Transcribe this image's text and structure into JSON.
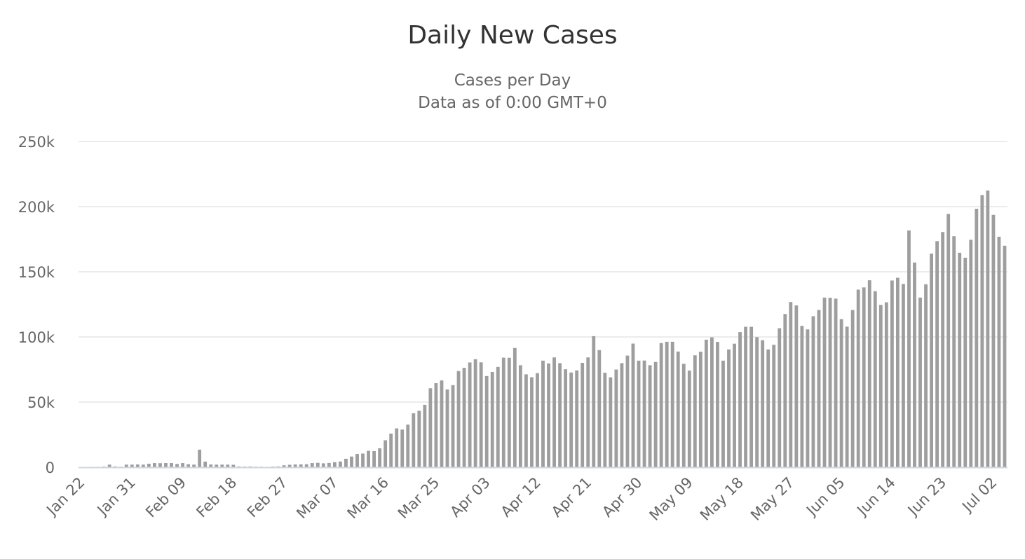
{
  "chart_data": {
    "type": "bar",
    "title": "Daily New Cases",
    "subtitle_lines": [
      "Cases per Day",
      "Data as of 0:00 GMT+0"
    ],
    "xlabel": "",
    "ylabel": "",
    "ylim": [
      0,
      250000
    ],
    "y_ticks": [
      {
        "value": 0,
        "label": "0"
      },
      {
        "value": 50000,
        "label": "50k"
      },
      {
        "value": 100000,
        "label": "100k"
      },
      {
        "value": 150000,
        "label": "150k"
      },
      {
        "value": 200000,
        "label": "200k"
      },
      {
        "value": 250000,
        "label": "250k"
      }
    ],
    "x_ticks": [
      {
        "index": 0,
        "label": "Jan 22"
      },
      {
        "index": 9,
        "label": "Jan 31"
      },
      {
        "index": 18,
        "label": "Feb 09"
      },
      {
        "index": 27,
        "label": "Feb 18"
      },
      {
        "index": 36,
        "label": "Feb 27"
      },
      {
        "index": 45,
        "label": "Mar 07"
      },
      {
        "index": 54,
        "label": "Mar 16"
      },
      {
        "index": 63,
        "label": "Mar 25"
      },
      {
        "index": 72,
        "label": "Apr 03"
      },
      {
        "index": 81,
        "label": "Apr 12"
      },
      {
        "index": 90,
        "label": "Apr 21"
      },
      {
        "index": 99,
        "label": "Apr 30"
      },
      {
        "index": 108,
        "label": "May 09"
      },
      {
        "index": 117,
        "label": "May 18"
      },
      {
        "index": 126,
        "label": "May 27"
      },
      {
        "index": 135,
        "label": "Jun 05"
      },
      {
        "index": 144,
        "label": "Jun 14"
      },
      {
        "index": 153,
        "label": "Jun 23"
      },
      {
        "index": 162,
        "label": "Jul 02"
      }
    ],
    "start_date": "Jan 22",
    "grid": true,
    "series": [
      {
        "name": "Daily New Cases",
        "color": "#9e9e9e",
        "values": [
          0,
          100,
          300,
          300,
          500,
          2000,
          600,
          400,
          2000,
          2000,
          2100,
          2000,
          2700,
          3200,
          3100,
          3200,
          3200,
          2500,
          3200,
          2300,
          2000,
          13500,
          4300,
          2100,
          2000,
          2000,
          2000,
          1900,
          600,
          500,
          600,
          400,
          400,
          300,
          500,
          600,
          1500,
          1900,
          2100,
          2200,
          2300,
          3200,
          3400,
          3000,
          3300,
          3900,
          4400,
          6500,
          8200,
          10200,
          10500,
          12600,
          12400,
          14500,
          20700,
          25800,
          29800,
          28900,
          32700,
          41400,
          43300,
          47900,
          60600,
          64500,
          66600,
          59700,
          63000,
          73800,
          76300,
          80400,
          82900,
          80500,
          70000,
          73100,
          77000,
          84100,
          84000,
          91500,
          78300,
          71300,
          69100,
          72200,
          81800,
          79700,
          84300,
          79900,
          75200,
          72700,
          74300,
          80100,
          84300,
          100600,
          89900,
          72500,
          69000,
          75000,
          79900,
          85700,
          94900,
          81800,
          81900,
          78300,
          80800,
          95300,
          96300,
          96300,
          88800,
          79400,
          74200,
          85900,
          88700,
          97900,
          99700,
          96200,
          81800,
          90400,
          94800,
          103700,
          107800,
          107800,
          99800,
          97500,
          90400,
          94000,
          106700,
          117600,
          126800,
          124200,
          108500,
          105800,
          115900,
          120700,
          130200,
          130100,
          129400,
          113700,
          107900,
          120700,
          136300,
          138000,
          143500,
          135100,
          124600,
          126600,
          143300,
          145400,
          140700,
          181700,
          157100,
          130200,
          140400,
          164000,
          173500,
          180500,
          194400,
          177300,
          164600,
          160800,
          174600,
          198400,
          208900,
          212400,
          193700,
          176900,
          170000
        ]
      }
    ]
  }
}
